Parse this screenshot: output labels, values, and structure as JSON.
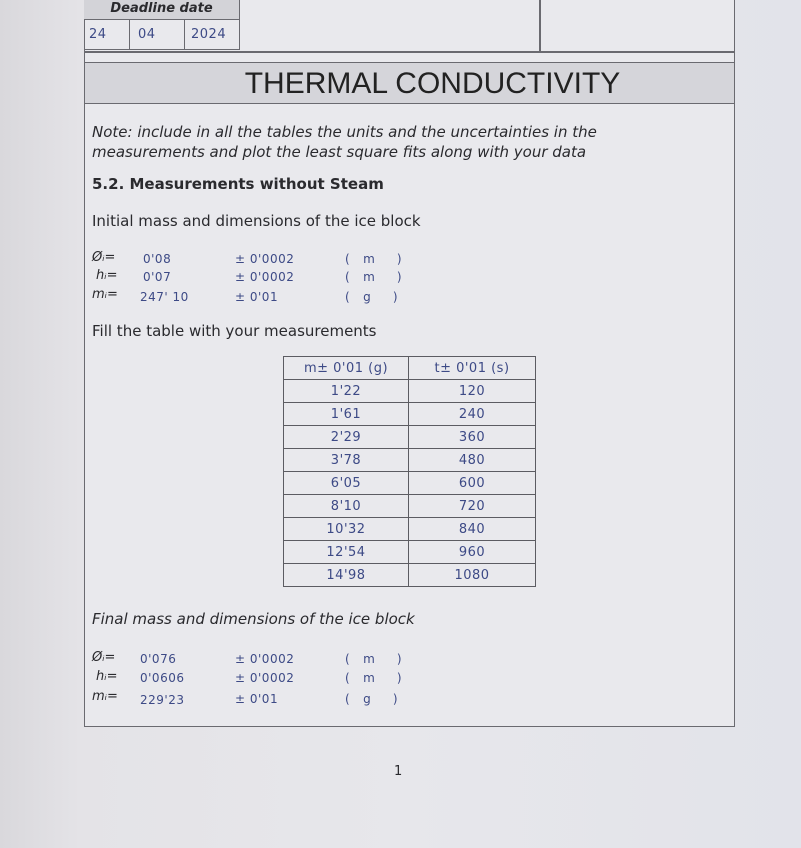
{
  "deadline": {
    "label": "Deadline date",
    "day": "24",
    "month": "04",
    "year": "2024"
  },
  "title": "THERMAL CONDUCTIVITY",
  "note": [
    "Note: include in all the tables the units and the uncertainties in the",
    "measurements and plot the least square fits along with your data"
  ],
  "section": "5.2. Measurements without Steam",
  "initial": {
    "heading": "Initial mass and dimensions of the ice block",
    "rows": [
      {
        "label": "Øᵢ=",
        "value": "0'08",
        "uncertainty": "± 0'0002",
        "unit": "m"
      },
      {
        "label": "hᵢ=",
        "value": "0'07",
        "uncertainty": "± 0'0002",
        "unit": "m"
      },
      {
        "label": "mᵢ=",
        "value": "247' 10",
        "uncertainty": "± 0'01",
        "unit": "g"
      }
    ]
  },
  "fill_instruction": "Fill the table with your measurements",
  "table": {
    "headers": [
      "m± 0'01 (g)",
      "t± 0'01  (s)"
    ],
    "rows": [
      [
        "1'22",
        "120"
      ],
      [
        "1'61",
        "240"
      ],
      [
        "2'29",
        "360"
      ],
      [
        "3'78",
        "480"
      ],
      [
        "6'05",
        "600"
      ],
      [
        "8'10",
        "720"
      ],
      [
        "10'32",
        "840"
      ],
      [
        "12'54",
        "960"
      ],
      [
        "14'98",
        "1080"
      ]
    ]
  },
  "final": {
    "heading": "Final mass and dimensions of the ice block",
    "rows": [
      {
        "label": "Øᵢ=",
        "value": "0'076",
        "uncertainty": "± 0'0002",
        "unit": "m"
      },
      {
        "label": "hᵢ=",
        "value": "0'0606",
        "uncertainty": "± 0'0002",
        "unit": "m"
      },
      {
        "label": "mᵢ=",
        "value": "229'23",
        "uncertainty": "± 0'01",
        "unit": "g"
      }
    ]
  },
  "page_number": "1"
}
